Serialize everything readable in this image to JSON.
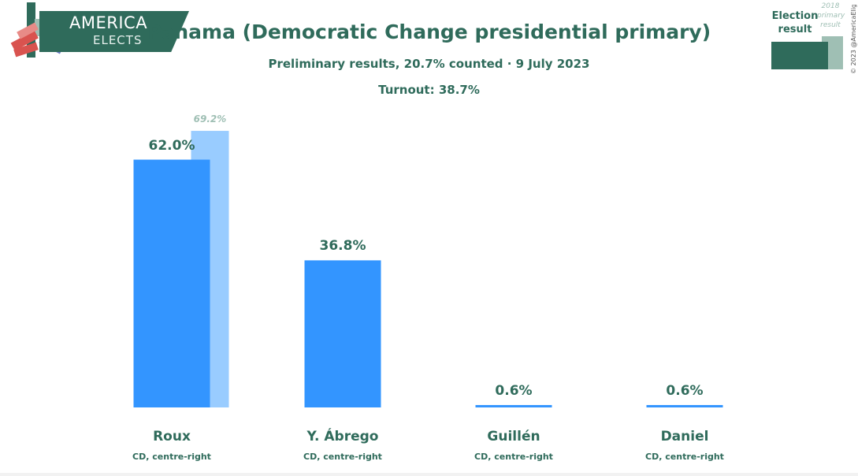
{
  "logo": {
    "line1": "AMERICA",
    "line2": "ELECTS"
  },
  "header": {
    "title": "Panama (Democratic Change presidential primary)",
    "subtitle": "Preliminary results, 20.7% counted · 9 July 2023",
    "turnout": "Turnout: 38.7%"
  },
  "legend": {
    "current": "Election result",
    "previous": "2018 primary result",
    "colors": {
      "current": "#2f6b5b",
      "previous": "#9fbfb4"
    }
  },
  "copyright": "© 2023 @AmericaElige",
  "colors": {
    "bar": "#3395ff",
    "prev_bar": "#99ccff",
    "text": "#2f6b5b"
  },
  "chart_data": {
    "type": "bar",
    "categories": [
      "Roux",
      "Y. Ábrego",
      "Guillén",
      "Daniel"
    ],
    "parties": [
      "CD, centre-right",
      "CD, centre-right",
      "CD, centre-right",
      "CD, centre-right"
    ],
    "series": [
      {
        "name": "Election result",
        "values": [
          62.0,
          36.8,
          0.6,
          0.6
        ],
        "labels": [
          "62.0%",
          "36.8%",
          "0.6%",
          "0.6%"
        ]
      },
      {
        "name": "2018 primary result",
        "values": [
          69.2,
          null,
          null,
          null
        ],
        "labels": [
          "69.2%",
          null,
          null,
          null
        ]
      }
    ],
    "ylim": [
      0,
      70
    ]
  }
}
